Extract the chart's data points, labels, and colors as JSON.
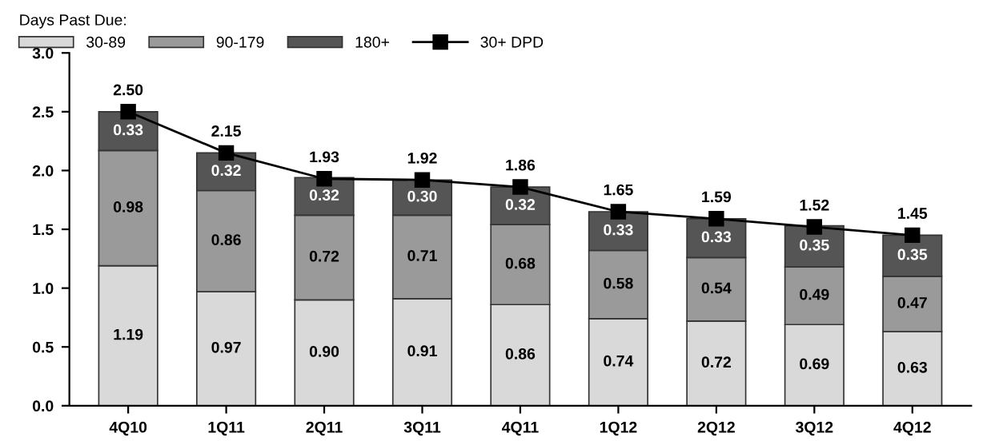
{
  "chart_data": {
    "type": "bar",
    "stacked": true,
    "legend_title": "Days Past Due:",
    "legend": "top",
    "grid": false,
    "categories": [
      "4Q10",
      "1Q11",
      "2Q11",
      "3Q11",
      "4Q11",
      "1Q12",
      "2Q12",
      "3Q12",
      "4Q12"
    ],
    "ylim": [
      0,
      3
    ],
    "yticks": [
      {
        "value": 0,
        "label": "0.0"
      },
      {
        "value": 0.5,
        "label": "0.5"
      },
      {
        "value": 1,
        "label": "1.0"
      },
      {
        "value": 1.5,
        "label": "1.5"
      },
      {
        "value": 2,
        "label": "2.0"
      },
      {
        "value": 2.5,
        "label": "2.5"
      },
      {
        "value": 3,
        "label": "3.0"
      }
    ],
    "series": [
      {
        "name": "30-89",
        "color": "#d9d9d9",
        "values": [
          1.19,
          0.97,
          0.9,
          0.91,
          0.86,
          0.74,
          0.72,
          0.69,
          0.63
        ],
        "value_labels": [
          "1.19",
          "0.97",
          "0.90",
          "0.91",
          "0.86",
          "0.74",
          "0.72",
          "0.69",
          "0.63"
        ]
      },
      {
        "name": "90-179",
        "color": "#9a9a9a",
        "values": [
          0.98,
          0.86,
          0.72,
          0.71,
          0.68,
          0.58,
          0.54,
          0.49,
          0.47
        ],
        "value_labels": [
          "0.98",
          "0.86",
          "0.72",
          "0.71",
          "0.68",
          "0.58",
          "0.54",
          "0.49",
          "0.47"
        ]
      },
      {
        "name": "180+",
        "color": "#555555",
        "values": [
          0.33,
          0.32,
          0.32,
          0.3,
          0.32,
          0.33,
          0.33,
          0.35,
          0.35
        ],
        "value_labels": [
          "0.33",
          "0.32",
          "0.32",
          "0.30",
          "0.32",
          "0.33",
          "0.33",
          "0.35",
          "0.35"
        ]
      },
      {
        "name": "30+ DPD",
        "type": "line",
        "color": "#000000",
        "marker": "square",
        "line_style": "solid",
        "values": [
          2.5,
          2.15,
          1.93,
          1.92,
          1.86,
          1.65,
          1.59,
          1.52,
          1.45
        ],
        "value_labels": [
          "2.50",
          "2.15",
          "1.93",
          "1.92",
          "1.86",
          "1.65",
          "1.59",
          "1.52",
          "1.45"
        ]
      }
    ]
  }
}
